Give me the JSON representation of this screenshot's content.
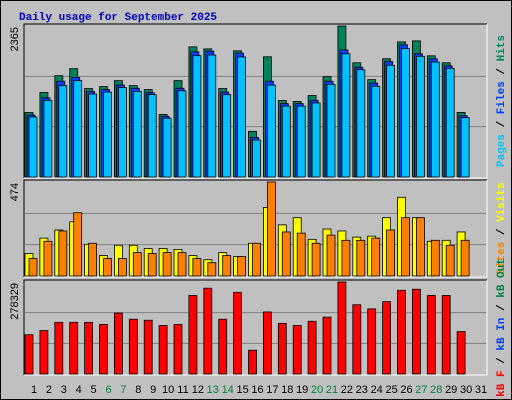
{
  "title": "Daily usage for September 2025",
  "chart_data": [
    {
      "type": "bar",
      "ylim": [
        0,
        2365
      ],
      "yticks": [
        2365
      ],
      "legend_separator": " / ",
      "series": [
        {
          "name": "Hits",
          "color": "#00805c",
          "values": [
            1011,
            1323,
            1587,
            1696,
            1385,
            1416,
            1509,
            1431,
            1369,
            980,
            1509,
            2038,
            2007,
            1385,
            1976,
            716,
            1883,
            1198,
            1183,
            1276,
            1571,
            2365,
            1789,
            1525,
            1852,
            2116,
            2132,
            1898,
            1789,
            1011,
            null
          ]
        },
        {
          "name": "Files",
          "color": "#0040ff",
          "values": [
            970,
            1240,
            1500,
            1560,
            1340,
            1370,
            1440,
            1390,
            1320,
            950,
            1390,
            1960,
            1970,
            1330,
            1940,
            620,
            1500,
            1150,
            1150,
            1200,
            1500,
            1990,
            1720,
            1470,
            1810,
            2070,
            1930,
            1850,
            1740,
            960,
            null
          ]
        },
        {
          "name": "Pages",
          "color": "#00c0ff",
          "values": [
            940,
            1200,
            1430,
            1510,
            1300,
            1330,
            1400,
            1340,
            1290,
            920,
            1350,
            1900,
            1910,
            1290,
            1880,
            580,
            1440,
            1110,
            1110,
            1160,
            1450,
            1930,
            1680,
            1420,
            1750,
            2010,
            1890,
            1800,
            1700,
            930,
            null
          ]
        }
      ]
    },
    {
      "type": "bar",
      "ylim": [
        0,
        474
      ],
      "yticks": [
        474
      ],
      "legend_separator": " / ",
      "series": [
        {
          "name": "Visits",
          "color": "#ffff00",
          "values": [
            113,
            191,
            232,
            273,
            160,
            103,
            155,
            155,
            139,
            139,
            134,
            103,
            82,
            118,
            98,
            165,
            345,
            258,
            294,
            185,
            237,
            227,
            196,
            201,
            294,
            397,
            294,
            175,
            180,
            222,
            null
          ]
        },
        {
          "name": "Sites",
          "color": "#ff8000",
          "values": [
            88,
            175,
            227,
            319,
            165,
            88,
            88,
            118,
            113,
            118,
            118,
            88,
            67,
            103,
            98,
            165,
            474,
            222,
            216,
            165,
            206,
            180,
            180,
            191,
            232,
            294,
            294,
            180,
            155,
            180,
            null
          ]
        }
      ]
    },
    {
      "type": "bar",
      "ylim": [
        0,
        278329
      ],
      "yticks": [
        278329
      ],
      "legend_separator": " / ",
      "categories": [
        "1",
        "2",
        "3",
        "4",
        "5",
        "6",
        "7",
        "8",
        "9",
        "10",
        "11",
        "12",
        "13",
        "14",
        "15",
        "16",
        "17",
        "18",
        "19",
        "20",
        "21",
        "22",
        "23",
        "24",
        "25",
        "26",
        "27",
        "28",
        "29",
        "30",
        "31"
      ],
      "highlight_categories": [
        5,
        6,
        12,
        13,
        19,
        20,
        26,
        27
      ],
      "highlight_color": "#008040",
      "category_color": "#000000",
      "series": [
        {
          "name": "kB F",
          "color": "#ff0000",
          "values": [
            118830,
            131350,
            156350,
            156350,
            156350,
            150110,
            184500,
            165740,
            162620,
            146980,
            150110,
            237670,
            259560,
            165740,
            247050,
            71930,
            187640,
            153240,
            146980,
            159490,
            172000,
            278329,
            209530,
            197020,
            218910,
            253310,
            256440,
            237670,
            237670,
            128220,
            null
          ]
        }
      ],
      "extra_legend": [
        {
          "name": "kB In",
          "color": "#0040ff"
        },
        {
          "name": "kB Out",
          "color": "#008040"
        }
      ]
    }
  ]
}
